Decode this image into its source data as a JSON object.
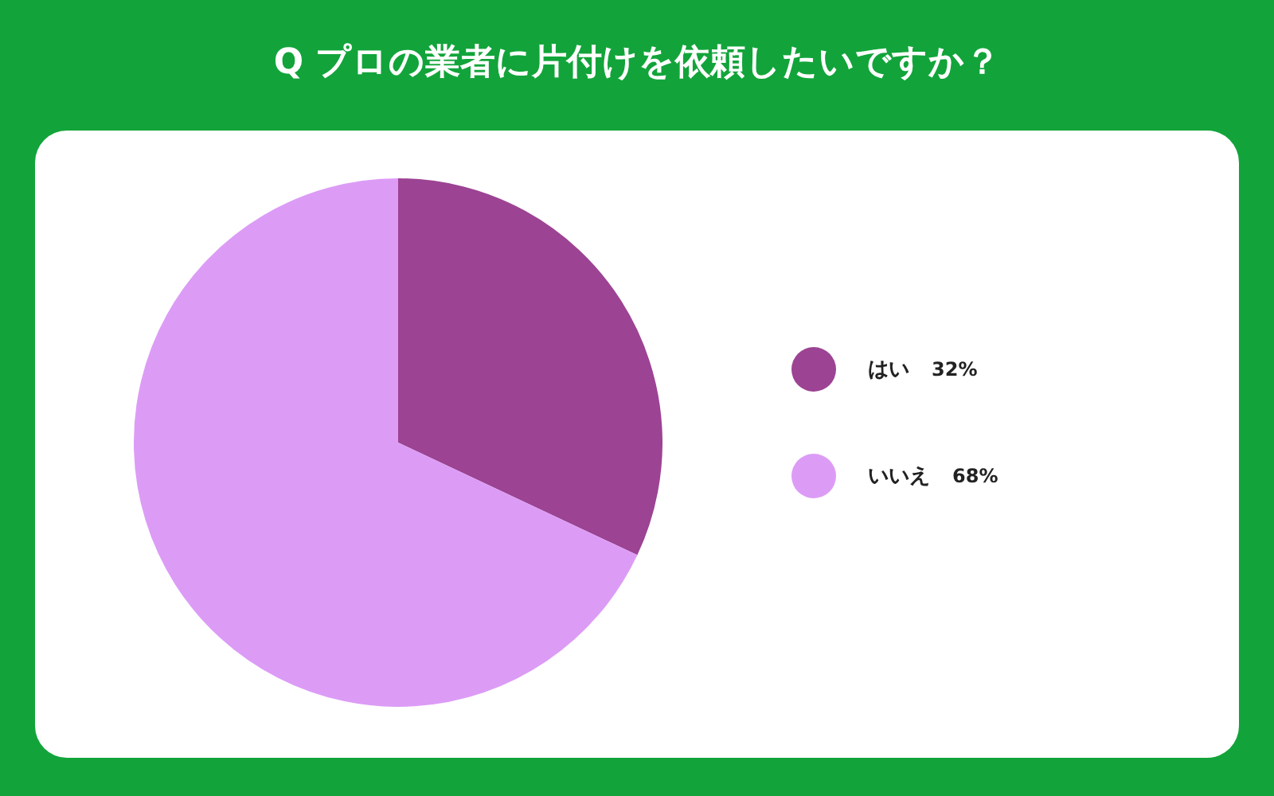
{
  "chart_data": {
    "type": "pie",
    "title": "Q プロの業者に片付けを依頼したいですか？",
    "categories": [
      "はい",
      "いいえ"
    ],
    "values": [
      32,
      68
    ],
    "value_labels": [
      "32%",
      "68%"
    ],
    "colors": [
      "#9c4393",
      "#dc9cf6"
    ],
    "legend": "right"
  }
}
